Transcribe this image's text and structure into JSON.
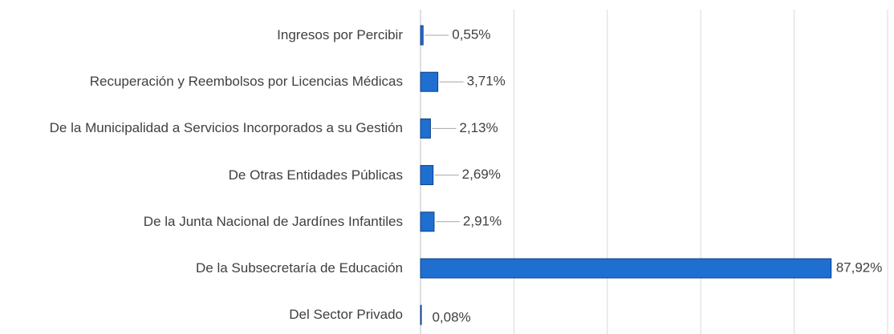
{
  "chart_data": {
    "type": "bar",
    "orientation": "horizontal",
    "categories": [
      "Ingresos por Percibir",
      "Recuperación y Reembolsos por Licencias Médicas",
      "De la Municipalidad a Servicios Incorporados a su Gestión",
      "De Otras Entidades Públicas",
      "De la Junta Nacional de Jardínes Infantiles",
      "De la Subsecretaría de Educación",
      "Del Sector Privado"
    ],
    "values": [
      0.55,
      3.71,
      2.13,
      2.69,
      2.91,
      87.92,
      0.08
    ],
    "value_labels": [
      "0,55%",
      "3,71%",
      "2,13%",
      "2,69%",
      "2,91%",
      "87,92%",
      "0,08%"
    ],
    "color": "#1f6fd0",
    "xlim": [
      0,
      100
    ],
    "xticks": [
      0,
      20,
      40,
      60,
      80,
      100
    ],
    "grid": true
  }
}
